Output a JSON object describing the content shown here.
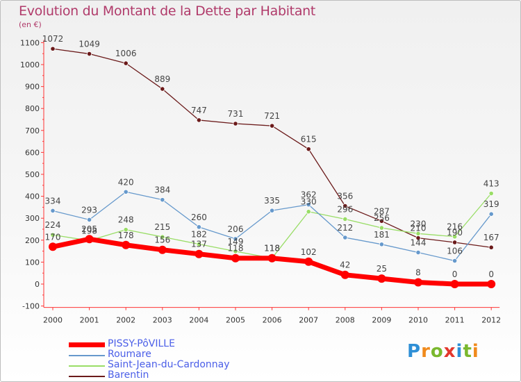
{
  "title": "Evolution du Montant de la Dette par Habitant",
  "subtitle": "(en €)",
  "logo": {
    "text": "Proxiti",
    "letters": [
      "P",
      "r",
      "o",
      "x",
      "i",
      "t",
      "i"
    ],
    "colors": [
      "#2e8fd6",
      "#f08a1c",
      "#7ab82e",
      "#e3372c",
      "#2e8fd6",
      "#7ab82e",
      "#f08a1c"
    ]
  },
  "chart_data": {
    "type": "line",
    "x": [
      "2000",
      "2001",
      "2002",
      "2003",
      "2004",
      "2005",
      "2006",
      "2007",
      "2008",
      "2009",
      "2010",
      "2011",
      "2012"
    ],
    "ylim": [
      -100,
      1100
    ],
    "yticks": [
      -100,
      0,
      100,
      200,
      300,
      400,
      500,
      600,
      700,
      800,
      900,
      1000,
      1100
    ],
    "grid": false,
    "legend": "bottom-left",
    "series": [
      {
        "name": "PISSY-PôVILLE",
        "color": "#ff0000",
        "values": [
          170,
          205,
          178,
          156,
          137,
          118,
          118,
          102,
          42,
          25,
          8,
          0,
          0
        ]
      },
      {
        "name": "Roumare",
        "color": "#6699cc",
        "values": [
          334,
          293,
          420,
          384,
          260,
          206,
          335,
          362,
          212,
          181,
          144,
          106,
          319
        ]
      },
      {
        "name": "Saint-Jean-du-Cardonnay",
        "color": "#99dd66",
        "values": [
          224,
          198,
          248,
          215,
          182,
          149,
          118,
          330,
          296,
          256,
          230,
          216,
          413
        ]
      },
      {
        "name": "Barentin",
        "color": "#6b1a1a",
        "values": [
          1072,
          1049,
          1006,
          889,
          747,
          731,
          721,
          615,
          356,
          287,
          210,
          190,
          167
        ]
      }
    ],
    "data_labels": {
      "PISSY-PôVILLE": [
        "170",
        "205",
        "178",
        "156",
        "137",
        "118",
        "118",
        "102",
        "42",
        "25",
        "8",
        "0",
        "0"
      ],
      "Roumare": [
        "334",
        "293",
        "420",
        "384",
        "260",
        "206",
        "335",
        "362",
        "212",
        "181",
        "144",
        "106",
        "319"
      ],
      "Saint-Jean-du-Cardonnay": [
        "224",
        "198",
        "248",
        "215",
        "182",
        "149",
        "118",
        "330",
        "296",
        "256",
        "230",
        "216",
        "413"
      ],
      "Barentin": [
        "1072",
        "1049",
        "1006",
        "889",
        "747",
        "731",
        "721",
        "615",
        "356",
        "287",
        "210",
        "190",
        "167"
      ]
    }
  }
}
